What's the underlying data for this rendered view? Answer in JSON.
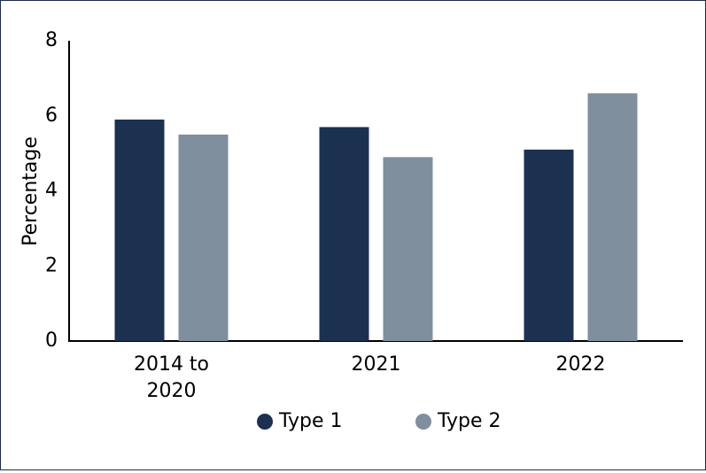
{
  "chart_data": {
    "type": "bar",
    "title": "",
    "xlabel": "",
    "ylabel": "Percentage",
    "ylim": [
      0,
      8
    ],
    "yticks": [
      "0",
      "2",
      "4",
      "6",
      "8"
    ],
    "categories": [
      [
        "2014 to",
        "2020"
      ],
      [
        "2021"
      ],
      [
        "2022"
      ]
    ],
    "series": [
      {
        "name": "Type 1",
        "color": "#1c3150",
        "values": [
          5.9,
          5.7,
          5.1
        ]
      },
      {
        "name": "Type 2",
        "color": "#7f8f9e",
        "values": [
          5.5,
          4.9,
          6.6
        ]
      }
    ],
    "grid": false,
    "legend_position": "bottom"
  }
}
